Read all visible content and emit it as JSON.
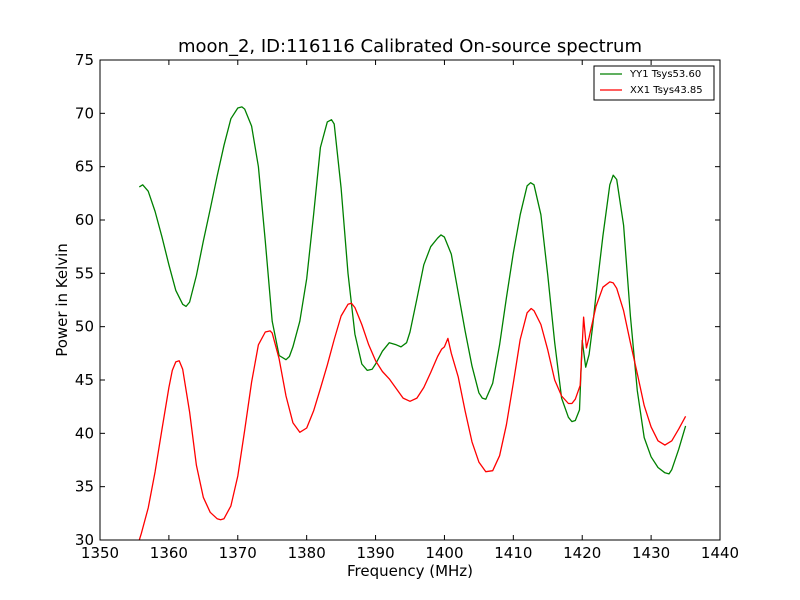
{
  "chart_data": {
    "type": "line",
    "title": "moon_2, ID:116116 Calibrated On-source spectrum",
    "xlabel": "Frequency (MHz)",
    "ylabel": "Power in Kelvin",
    "xlim": [
      1350,
      1440
    ],
    "ylim": [
      30,
      75
    ],
    "xticks": [
      1350,
      1360,
      1370,
      1380,
      1390,
      1400,
      1410,
      1420,
      1430,
      1440
    ],
    "yticks": [
      30,
      35,
      40,
      45,
      50,
      55,
      60,
      65,
      70,
      75
    ],
    "grid": false,
    "legend_position": "top-right",
    "series": [
      {
        "name": "YY1 Tsys53.60",
        "color": "#008000",
        "x": [
          1355.7,
          1356.2,
          1357,
          1358,
          1359,
          1360,
          1361,
          1362,
          1362.5,
          1363,
          1364,
          1365,
          1366,
          1367,
          1368,
          1369,
          1370,
          1370.6,
          1371,
          1372,
          1373,
          1374,
          1375,
          1376,
          1377,
          1377.5,
          1378,
          1379,
          1380,
          1381,
          1382,
          1383,
          1383.6,
          1384,
          1385,
          1386,
          1387,
          1388,
          1388.8,
          1389.5,
          1390,
          1391,
          1392,
          1393,
          1393.7,
          1394.5,
          1395,
          1396,
          1397,
          1398,
          1399,
          1399.5,
          1400,
          1401,
          1402,
          1403,
          1404,
          1405,
          1405.5,
          1406,
          1407,
          1408,
          1409,
          1410,
          1411,
          1412,
          1412.5,
          1413,
          1414,
          1415,
          1416,
          1417,
          1418,
          1418.5,
          1419,
          1419.6,
          1420,
          1420.5,
          1421,
          1421.5,
          1422,
          1423,
          1424,
          1424.5,
          1425,
          1426,
          1427,
          1428,
          1429,
          1430,
          1431,
          1432,
          1432.6,
          1433,
          1434,
          1435
        ],
        "values": [
          63.1,
          63.3,
          62.7,
          60.8,
          58.4,
          55.8,
          53.4,
          52.1,
          51.9,
          52.3,
          54.8,
          58.0,
          61.0,
          64.1,
          67.0,
          69.5,
          70.5,
          70.6,
          70.4,
          68.8,
          65.0,
          58.0,
          50.5,
          47.3,
          46.9,
          47.2,
          48.1,
          50.5,
          54.5,
          60.5,
          66.8,
          69.2,
          69.4,
          69.0,
          63.0,
          55.0,
          49.3,
          46.5,
          45.9,
          46.0,
          46.5,
          47.7,
          48.5,
          48.3,
          48.1,
          48.5,
          49.5,
          52.6,
          55.8,
          57.5,
          58.3,
          58.6,
          58.4,
          56.8,
          53.2,
          49.6,
          46.3,
          43.8,
          43.3,
          43.2,
          44.7,
          48.3,
          52.7,
          56.9,
          60.5,
          63.2,
          63.5,
          63.3,
          60.5,
          54.8,
          48.5,
          43.3,
          41.5,
          41.1,
          41.2,
          42.2,
          48.7,
          46.2,
          47.4,
          50.0,
          53.0,
          58.5,
          63.3,
          64.2,
          63.8,
          59.5,
          51.0,
          44.0,
          39.6,
          37.8,
          36.8,
          36.3,
          36.2,
          36.6,
          38.5,
          40.7
        ]
      },
      {
        "name": "XX1 Tsys43.85",
        "color": "#ff0000",
        "x": [
          1355.7,
          1356,
          1357,
          1358,
          1359,
          1360,
          1360.5,
          1361,
          1361.5,
          1362,
          1363,
          1364,
          1365,
          1366,
          1367,
          1367.5,
          1368,
          1369,
          1370,
          1371,
          1372,
          1373,
          1374,
          1374.7,
          1375,
          1376,
          1377,
          1378,
          1379,
          1380,
          1381,
          1382,
          1383,
          1384,
          1385,
          1386,
          1386.5,
          1387,
          1388,
          1389,
          1390,
          1391,
          1392,
          1393,
          1394,
          1395,
          1396,
          1397,
          1398,
          1399,
          1399.6,
          1400,
          1400.5,
          1401,
          1402,
          1403,
          1404,
          1405,
          1406,
          1407,
          1408,
          1409,
          1410,
          1411,
          1412,
          1412.6,
          1413,
          1414,
          1415,
          1416,
          1417,
          1418,
          1418.5,
          1419,
          1419.7,
          1420.2,
          1420.6,
          1421,
          1422,
          1423,
          1424,
          1424.5,
          1425,
          1426,
          1427,
          1428,
          1429,
          1430,
          1431,
          1432,
          1433,
          1434,
          1435
        ],
        "values": [
          30.0,
          30.6,
          33.0,
          36.4,
          40.4,
          44.3,
          45.9,
          46.7,
          46.8,
          46.0,
          42.0,
          37.0,
          34.0,
          32.6,
          32.0,
          31.9,
          32.0,
          33.2,
          36.0,
          40.3,
          44.8,
          48.3,
          49.5,
          49.6,
          49.4,
          47.0,
          43.5,
          41.0,
          40.1,
          40.5,
          42.1,
          44.2,
          46.4,
          48.8,
          51.0,
          52.1,
          52.2,
          51.8,
          50.2,
          48.3,
          46.8,
          45.8,
          45.1,
          44.2,
          43.3,
          43.0,
          43.3,
          44.3,
          45.7,
          47.2,
          47.9,
          48.1,
          48.9,
          47.5,
          45.3,
          42.1,
          39.2,
          37.3,
          36.4,
          36.5,
          37.9,
          40.8,
          44.7,
          48.8,
          51.3,
          51.7,
          51.5,
          50.2,
          47.8,
          45.0,
          43.5,
          42.8,
          42.8,
          43.2,
          44.5,
          50.9,
          48.0,
          49.0,
          51.9,
          53.7,
          54.2,
          54.1,
          53.6,
          51.5,
          48.5,
          45.6,
          42.6,
          40.6,
          39.3,
          38.9,
          39.3,
          40.4,
          41.6
        ]
      }
    ]
  }
}
